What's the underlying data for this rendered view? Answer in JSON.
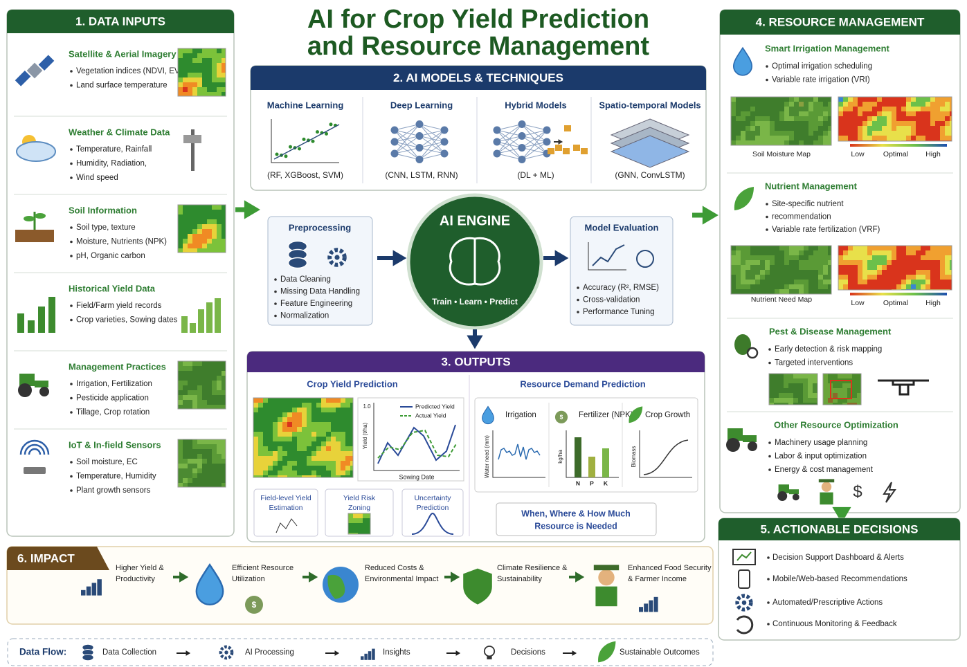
{
  "title_lines": [
    "AI for Crop Yield Prediction",
    "and Resource Management"
  ],
  "data_inputs": {
    "header": "1. DATA INPUTS",
    "items": [
      {
        "title": "Satellite & Aerial Imagery",
        "bullets": [
          "Vegetation indices (NDVI, EVI)",
          "Land surface temperature"
        ]
      },
      {
        "title": "Weather & Climate Data",
        "bullets": [
          "Temperature, Rainfall",
          "Humidity, Radiation,",
          "Wind speed"
        ]
      },
      {
        "title": "Soil Information",
        "bullets": [
          "Soil type, texture",
          "Moisture, Nutrients (NPK)",
          "pH, Organic carbon"
        ]
      },
      {
        "title": "Historical Yield Data",
        "bullets": [
          "Field/Farm yield records",
          "Crop varieties, Sowing dates"
        ]
      },
      {
        "title": "Management Practices",
        "bullets": [
          "Irrigation, Fertilization",
          "Pesticide application",
          "Tillage, Crop rotation"
        ]
      },
      {
        "title": "IoT & In-field Sensors",
        "bullets": [
          "Soil moisture, EC",
          "Temperature, Humidity",
          "Plant growth sensors"
        ]
      }
    ]
  },
  "ai_models": {
    "header": "2. AI MODELS & TECHNIQUES",
    "models": [
      {
        "name": "Machine Learning",
        "detail": "(RF, XGBoost, SVM)"
      },
      {
        "name": "Deep Learning",
        "detail": "(CNN, LSTM, RNN)"
      },
      {
        "name": "Hybrid Models",
        "detail": "(DL + ML)"
      },
      {
        "name": "Spatio-temporal Models",
        "detail": "(GNN, ConvLSTM)"
      }
    ]
  },
  "preprocessing": {
    "title": "Preprocessing",
    "bullets": [
      "Data Cleaning",
      "Missing Data Handling",
      "Feature Engineering",
      "Normalization"
    ]
  },
  "ai_engine": {
    "title": "AI ENGINE",
    "subtitle": "Train • Learn • Predict"
  },
  "model_evaluation": {
    "title": "Model Evaluation",
    "bullets": [
      "Accuracy (R², RMSE)",
      "Cross-validation",
      "Performance Tuning"
    ]
  },
  "outputs": {
    "header": "3. OUTPUTS",
    "crop_yield": {
      "title": "Crop Yield Prediction",
      "legend": [
        "Predicted Yield",
        "Actual Yield"
      ],
      "y_label": "Yield (t/ha)",
      "y_tick": "1.0",
      "x_label": "Sowing Date",
      "cards": [
        [
          "Field-level Yield",
          "Estimation"
        ],
        [
          "Yield Risk",
          "Zoning"
        ],
        [
          "Uncertainty",
          "Prediction"
        ]
      ]
    },
    "resource_demand": {
      "title": "Resource Demand Prediction",
      "panels": [
        {
          "name": "Irrigation",
          "axis": "Water need (mm)"
        },
        {
          "name": "Fertilizer (NPK)",
          "axis": "kg/ha",
          "bars": [
            "N",
            "P",
            "K"
          ]
        },
        {
          "name": "Crop Growth",
          "axis": "Biomass"
        }
      ],
      "note_lines": [
        "When, Where & How Much",
        "Resource is Needed"
      ]
    }
  },
  "resource_management": {
    "header": "4. RESOURCE MANAGEMENT",
    "sections": [
      {
        "title": "Smart Irrigation Management",
        "bullets": [
          "Optimal irrigation scheduling",
          "Variable rate irrigation (VRI)"
        ],
        "map_label": "Soil Moisture Map",
        "scale": [
          "Low",
          "Optimal",
          "High"
        ]
      },
      {
        "title": "Nutrient Management",
        "bullets": [
          "Site-specific nutrient",
          "recommendation",
          "Variable rate fertilization (VRF)"
        ],
        "map_label": "Nutrient Need Map",
        "scale": [
          "Low",
          "Optimal",
          "High"
        ]
      },
      {
        "title": "Pest & Disease Management",
        "bullets": [
          "Early detection & risk mapping",
          "Targeted interventions"
        ]
      },
      {
        "title": "Other Resource Optimization",
        "bullets": [
          "Machinery usage planning",
          "Labor & input optimization",
          "Energy & cost management"
        ]
      }
    ]
  },
  "actionable_decisions": {
    "header": "5. ACTIONABLE DECISIONS",
    "items": [
      "Decision Support Dashboard & Alerts",
      "Mobile/Web-based Recommendations",
      "Automated/Prescriptive Actions",
      "Continuous Monitoring & Feedback"
    ]
  },
  "impact": {
    "header": "6. IMPACT",
    "items": [
      [
        "Higher Yield &",
        "Productivity"
      ],
      [
        "Efficient Resource",
        "Utilization"
      ],
      [
        "Reduced Costs &",
        "Environmental Impact"
      ],
      [
        "Climate Resilience &",
        "Sustainability"
      ],
      [
        "Enhanced Food Security",
        "& Farmer Income"
      ]
    ]
  },
  "data_flow": {
    "label": "Data Flow:",
    "steps": [
      "Data Collection",
      "AI Processing",
      "Insights",
      "Decisions",
      "Sustainable Outcomes"
    ]
  }
}
